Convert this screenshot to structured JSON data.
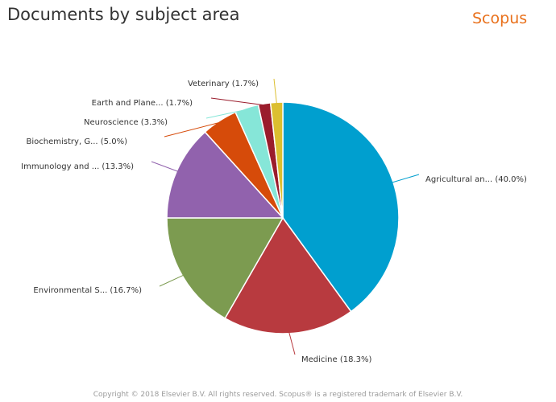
{
  "title": "Documents by subject area",
  "logo": "Scopus",
  "footer": "Copyright © 2018 Elsevier B.V. All rights reserved. Scopus® is a registered trademark of Elsevier B.V.",
  "chart_data": {
    "type": "pie",
    "title": "Documents by subject area",
    "slices": [
      {
        "label": "Agricultural an...",
        "value": 40.0,
        "text": "Agricultural an... (40.0%)",
        "color": "#009fcf"
      },
      {
        "label": "Medicine",
        "value": 18.3,
        "text": "Medicine (18.3%)",
        "color": "#b83a3f"
      },
      {
        "label": "Environmental S...",
        "value": 16.7,
        "text": "Environmental S... (16.7%)",
        "color": "#7c9b50"
      },
      {
        "label": "Immunology and ...",
        "value": 13.3,
        "text": "Immunology and ... (13.3%)",
        "color": "#9162ad"
      },
      {
        "label": "Biochemistry, G...",
        "value": 5.0,
        "text": "Biochemistry, G... (5.0%)",
        "color": "#d64b0a"
      },
      {
        "label": "Neuroscience",
        "value": 3.3,
        "text": "Neuroscience (3.3%)",
        "color": "#86e6d8"
      },
      {
        "label": "Earth and Plane...",
        "value": 1.7,
        "text": "Earth and Plane... (1.7%)",
        "color": "#9a1c2c"
      },
      {
        "label": "Veterinary",
        "value": 1.7,
        "text": "Veterinary (1.7%)",
        "color": "#dcbf30"
      }
    ]
  }
}
